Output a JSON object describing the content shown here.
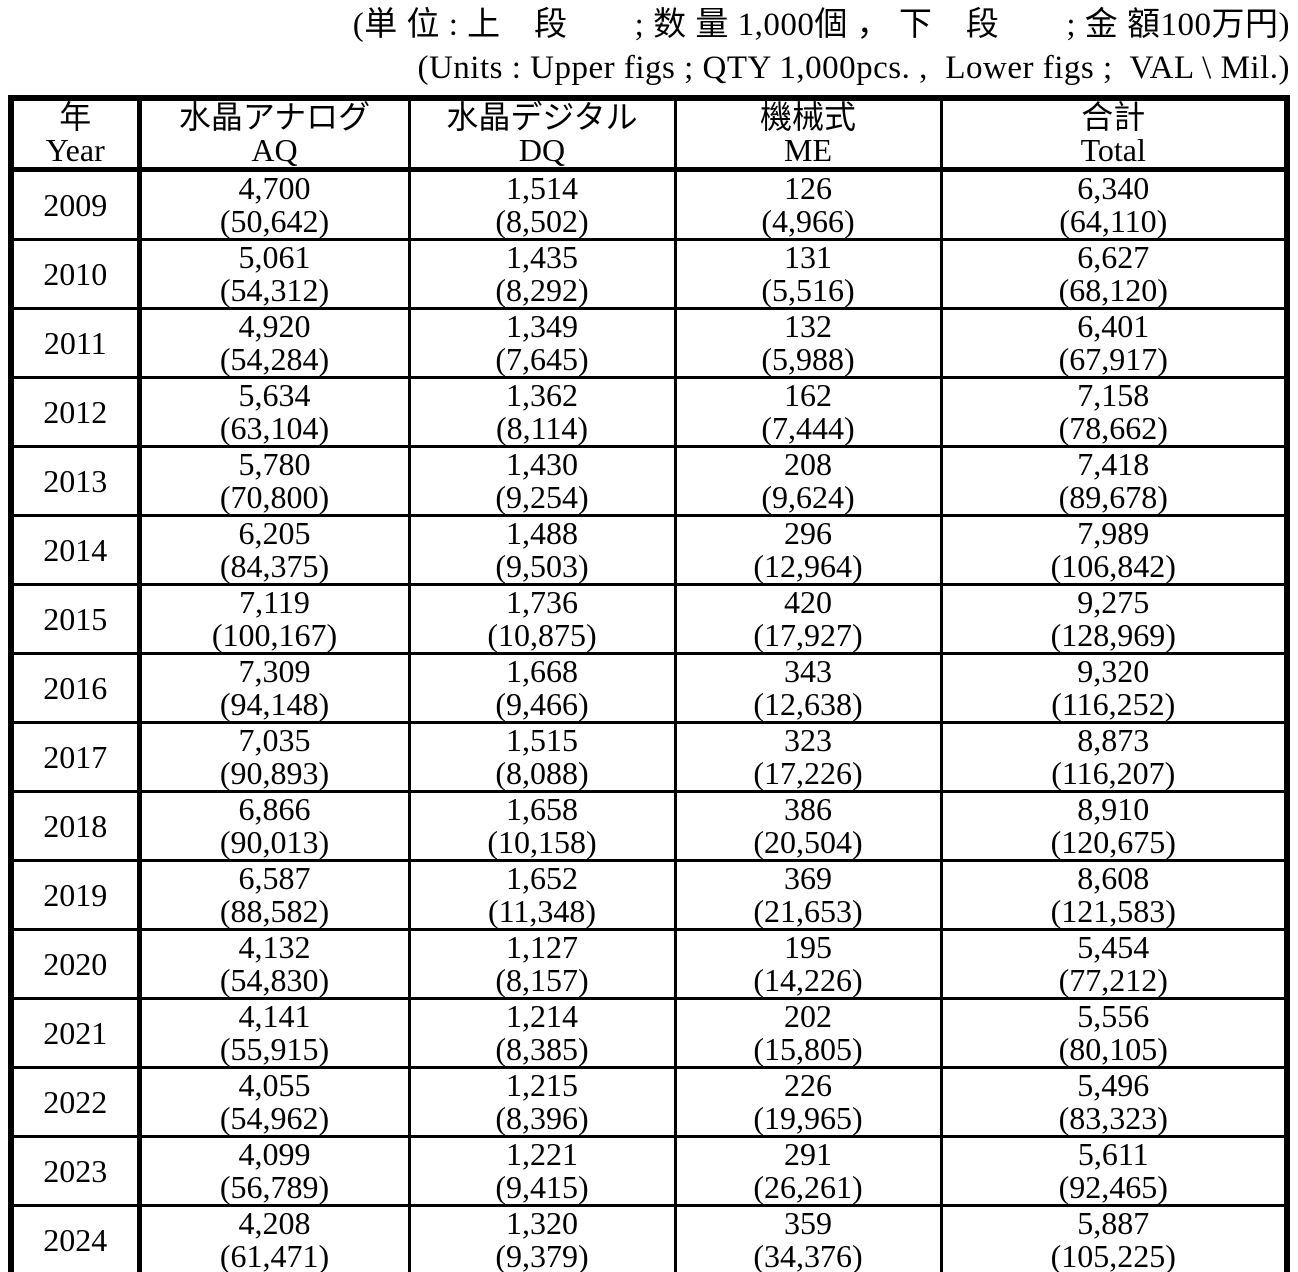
{
  "notes": {
    "line1": "(単 位 : 上　段　　; 数 量 1,000個 ， 下　段　　; 金 額100万円)",
    "line2": "(Units : Upper figs ; QTY 1,000pcs. ,  Lower figs ;  VAL \\ Mil.)"
  },
  "table": {
    "columns": [
      {
        "ja": "年",
        "en": "Year"
      },
      {
        "ja": "水晶アナログ",
        "en": "AQ"
      },
      {
        "ja": "水晶デジタル",
        "en": "DQ"
      },
      {
        "ja": "機械式",
        "en": "ME"
      },
      {
        "ja": "合計",
        "en": "Total"
      }
    ],
    "rows": [
      {
        "year": "2009",
        "aq": {
          "qty": "4,700",
          "val": "(50,642)"
        },
        "dq": {
          "qty": "1,514",
          "val": "(8,502)"
        },
        "me": {
          "qty": "126",
          "val": "(4,966)"
        },
        "total": {
          "qty": "6,340",
          "val": "(64,110)"
        }
      },
      {
        "year": "2010",
        "aq": {
          "qty": "5,061",
          "val": "(54,312)"
        },
        "dq": {
          "qty": "1,435",
          "val": "(8,292)"
        },
        "me": {
          "qty": "131",
          "val": "(5,516)"
        },
        "total": {
          "qty": "6,627",
          "val": "(68,120)"
        }
      },
      {
        "year": "2011",
        "aq": {
          "qty": "4,920",
          "val": "(54,284)"
        },
        "dq": {
          "qty": "1,349",
          "val": "(7,645)"
        },
        "me": {
          "qty": "132",
          "val": "(5,988)"
        },
        "total": {
          "qty": "6,401",
          "val": "(67,917)"
        }
      },
      {
        "year": "2012",
        "aq": {
          "qty": "5,634",
          "val": "(63,104)"
        },
        "dq": {
          "qty": "1,362",
          "val": "(8,114)"
        },
        "me": {
          "qty": "162",
          "val": "(7,444)"
        },
        "total": {
          "qty": "7,158",
          "val": "(78,662)"
        }
      },
      {
        "year": "2013",
        "aq": {
          "qty": "5,780",
          "val": "(70,800)"
        },
        "dq": {
          "qty": "1,430",
          "val": "(9,254)"
        },
        "me": {
          "qty": "208",
          "val": "(9,624)"
        },
        "total": {
          "qty": "7,418",
          "val": "(89,678)"
        }
      },
      {
        "year": "2014",
        "aq": {
          "qty": "6,205",
          "val": "(84,375)"
        },
        "dq": {
          "qty": "1,488",
          "val": "(9,503)"
        },
        "me": {
          "qty": "296",
          "val": "(12,964)"
        },
        "total": {
          "qty": "7,989",
          "val": "(106,842)"
        }
      },
      {
        "year": "2015",
        "aq": {
          "qty": "7,119",
          "val": "(100,167)"
        },
        "dq": {
          "qty": "1,736",
          "val": "(10,875)"
        },
        "me": {
          "qty": "420",
          "val": "(17,927)"
        },
        "total": {
          "qty": "9,275",
          "val": "(128,969)"
        }
      },
      {
        "year": "2016",
        "aq": {
          "qty": "7,309",
          "val": "(94,148)"
        },
        "dq": {
          "qty": "1,668",
          "val": "(9,466)"
        },
        "me": {
          "qty": "343",
          "val": "(12,638)"
        },
        "total": {
          "qty": "9,320",
          "val": "(116,252)"
        }
      },
      {
        "year": "2017",
        "aq": {
          "qty": "7,035",
          "val": "(90,893)"
        },
        "dq": {
          "qty": "1,515",
          "val": "(8,088)"
        },
        "me": {
          "qty": "323",
          "val": "(17,226)"
        },
        "total": {
          "qty": "8,873",
          "val": "(116,207)"
        }
      },
      {
        "year": "2018",
        "aq": {
          "qty": "6,866",
          "val": "(90,013)"
        },
        "dq": {
          "qty": "1,658",
          "val": "(10,158)"
        },
        "me": {
          "qty": "386",
          "val": "(20,504)"
        },
        "total": {
          "qty": "8,910",
          "val": "(120,675)"
        }
      },
      {
        "year": "2019",
        "aq": {
          "qty": "6,587",
          "val": "(88,582)"
        },
        "dq": {
          "qty": "1,652",
          "val": "(11,348)"
        },
        "me": {
          "qty": "369",
          "val": "(21,653)"
        },
        "total": {
          "qty": "8,608",
          "val": "(121,583)"
        }
      },
      {
        "year": "2020",
        "aq": {
          "qty": "4,132",
          "val": "(54,830)"
        },
        "dq": {
          "qty": "1,127",
          "val": "(8,157)"
        },
        "me": {
          "qty": "195",
          "val": "(14,226)"
        },
        "total": {
          "qty": "5,454",
          "val": "(77,212)"
        }
      },
      {
        "year": "2021",
        "aq": {
          "qty": "4,141",
          "val": "(55,915)"
        },
        "dq": {
          "qty": "1,214",
          "val": "(8,385)"
        },
        "me": {
          "qty": "202",
          "val": "(15,805)"
        },
        "total": {
          "qty": "5,556",
          "val": "(80,105)"
        }
      },
      {
        "year": "2022",
        "aq": {
          "qty": "4,055",
          "val": "(54,962)"
        },
        "dq": {
          "qty": "1,215",
          "val": "(8,396)"
        },
        "me": {
          "qty": "226",
          "val": "(19,965)"
        },
        "total": {
          "qty": "5,496",
          "val": "(83,323)"
        }
      },
      {
        "year": "2023",
        "aq": {
          "qty": "4,099",
          "val": "(56,789)"
        },
        "dq": {
          "qty": "1,221",
          "val": "(9,415)"
        },
        "me": {
          "qty": "291",
          "val": "(26,261)"
        },
        "total": {
          "qty": "5,611",
          "val": "(92,465)"
        }
      },
      {
        "year": "2024",
        "aq": {
          "qty": "4,208",
          "val": "(61,471)"
        },
        "dq": {
          "qty": "1,320",
          "val": "(9,379)"
        },
        "me": {
          "qty": "359",
          "val": "(34,376)"
        },
        "total": {
          "qty": "5,887",
          "val": "(105,225)"
        }
      }
    ]
  }
}
